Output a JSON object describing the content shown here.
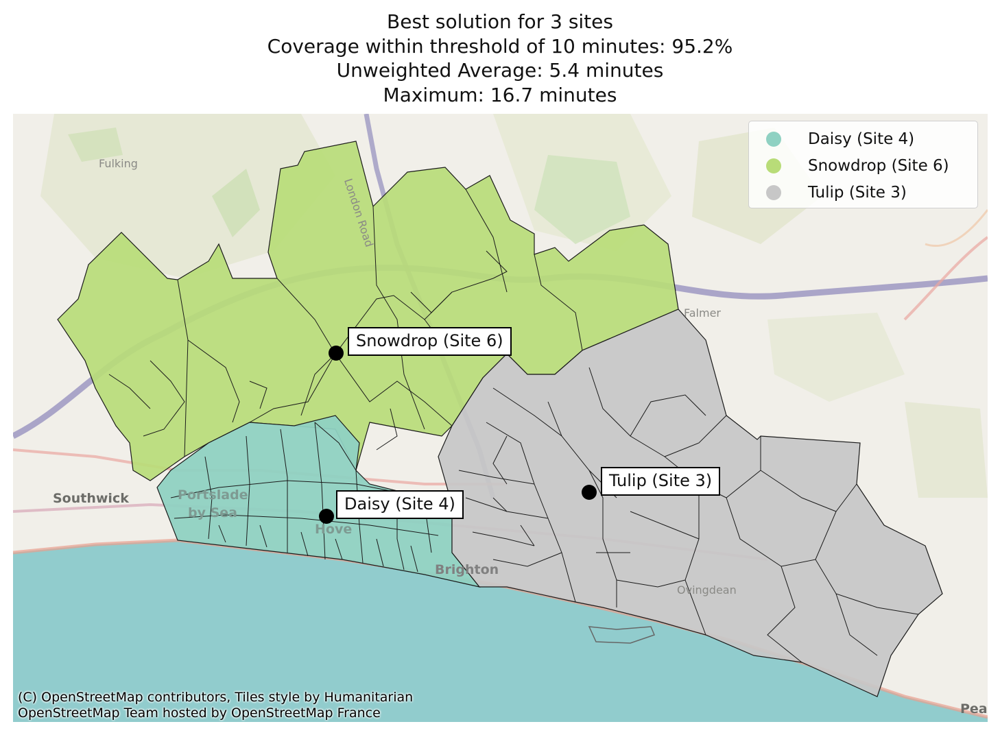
{
  "title": {
    "line1": "Best solution for 3 sites",
    "line2": "Coverage within threshold of 10 minutes: 95.2%",
    "line3": "Unweighted Average: 5.4 minutes",
    "line4": "Maximum: 16.7 minutes"
  },
  "legend": [
    {
      "label": "Daisy (Site 4)",
      "color": "#8fd1c2"
    },
    {
      "label": "Snowdrop (Site 6)",
      "color": "#b8dc78"
    },
    {
      "label": "Tulip (Site 3)",
      "color": "#c7c7c7"
    }
  ],
  "sites": [
    {
      "label": "Snowdrop (Site 6)"
    },
    {
      "label": "Daisy (Site 4)"
    },
    {
      "label": "Tulip (Site 3)"
    }
  ],
  "places": {
    "fulking": "Fulking",
    "london_road": "London Road",
    "falmer": "Falmer",
    "southwick": "Southwick",
    "portslade": "Portslade",
    "by_sea": "by Sea",
    "hove": "Hove",
    "brighton": "Brighton",
    "ovingdean": "Ovingdean",
    "peacehaven": "Peac"
  },
  "attribution": {
    "line1": "(C) OpenStreetMap contributors, Tiles style by Humanitarian",
    "line2": "OpenStreetMap Team hosted by OpenStreetMap France"
  },
  "colors": {
    "sea": "#91cccd",
    "land": "#f1efe9",
    "daisy": "#8fd1c2",
    "snowdrop": "#b8dc78",
    "tulip": "#c7c7c7"
  }
}
